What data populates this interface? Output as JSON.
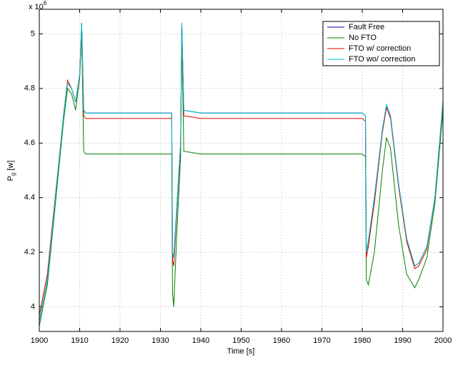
{
  "chart_data": {
    "type": "line",
    "multiplier_base": "x 10",
    "multiplier_exp": "6",
    "x_label": "Time [s]",
    "y_label": "P",
    "y_label_sub": "g",
    "y_label_unit": "[w]",
    "xlim": [
      1900,
      2000
    ],
    "xticks": [
      1900,
      1910,
      1920,
      1930,
      1940,
      1950,
      1960,
      1970,
      1980,
      1990,
      2000
    ],
    "ylim": [
      3.91,
      5.09
    ],
    "yticks": [
      4,
      4.2,
      4.4,
      4.6,
      4.8,
      5
    ],
    "grid": true,
    "legend": "top-right",
    "x": [
      1900,
      1902,
      1904,
      1906,
      1907,
      1908,
      1909,
      1910,
      1910.5,
      1911,
      1911.5,
      1915,
      1920,
      1925,
      1930,
      1932.8,
      1933,
      1933.3,
      1934,
      1935,
      1935.3,
      1935.8,
      1940,
      1950,
      1960,
      1970,
      1980,
      1980.8,
      1981,
      1981.5,
      1983,
      1985,
      1986,
      1987,
      1989,
      1991,
      1993,
      1994,
      1996,
      1998,
      2000
    ],
    "series": [
      {
        "name": "Fault Free",
        "color": "#0000bb",
        "values": [
          3.95,
          4.1,
          4.4,
          4.7,
          4.82,
          4.8,
          4.75,
          4.85,
          5.04,
          4.72,
          4.71,
          4.71,
          4.71,
          4.71,
          4.71,
          4.71,
          4.2,
          4.18,
          4.35,
          4.6,
          5.04,
          4.72,
          4.71,
          4.71,
          4.71,
          4.71,
          4.71,
          4.7,
          4.2,
          4.24,
          4.4,
          4.65,
          4.74,
          4.7,
          4.45,
          4.25,
          4.15,
          4.16,
          4.22,
          4.4,
          4.75
        ]
      },
      {
        "name": "No FTO",
        "color": "#008000",
        "values": [
          3.93,
          4.08,
          4.38,
          4.68,
          4.8,
          4.78,
          4.72,
          4.84,
          5.0,
          4.57,
          4.56,
          4.56,
          4.56,
          4.56,
          4.56,
          4.56,
          4.05,
          4.0,
          4.25,
          4.55,
          5.0,
          4.57,
          4.56,
          4.56,
          4.56,
          4.56,
          4.56,
          4.55,
          4.1,
          4.08,
          4.2,
          4.5,
          4.62,
          4.58,
          4.3,
          4.12,
          4.07,
          4.1,
          4.18,
          4.38,
          4.72
        ]
      },
      {
        "name": "FTO w/ correction",
        "color": "#e00000",
        "values": [
          3.97,
          4.12,
          4.41,
          4.7,
          4.83,
          4.8,
          4.75,
          4.84,
          5.03,
          4.7,
          4.69,
          4.69,
          4.69,
          4.69,
          4.69,
          4.69,
          4.17,
          4.15,
          4.33,
          4.59,
          5.03,
          4.7,
          4.69,
          4.69,
          4.69,
          4.69,
          4.69,
          4.68,
          4.18,
          4.22,
          4.38,
          4.64,
          4.73,
          4.69,
          4.44,
          4.24,
          4.14,
          4.15,
          4.21,
          4.4,
          4.75
        ]
      },
      {
        "name": "FTO wo/ correction",
        "color": "#00c0c8",
        "values": [
          3.95,
          4.1,
          4.4,
          4.7,
          4.82,
          4.8,
          4.75,
          4.85,
          5.04,
          4.72,
          4.71,
          4.71,
          4.71,
          4.71,
          4.71,
          4.71,
          4.2,
          4.18,
          4.35,
          4.6,
          5.04,
          4.72,
          4.71,
          4.71,
          4.71,
          4.71,
          4.71,
          4.7,
          4.2,
          4.24,
          4.4,
          4.65,
          4.74,
          4.7,
          4.45,
          4.25,
          4.15,
          4.16,
          4.22,
          4.4,
          4.75
        ]
      }
    ]
  }
}
